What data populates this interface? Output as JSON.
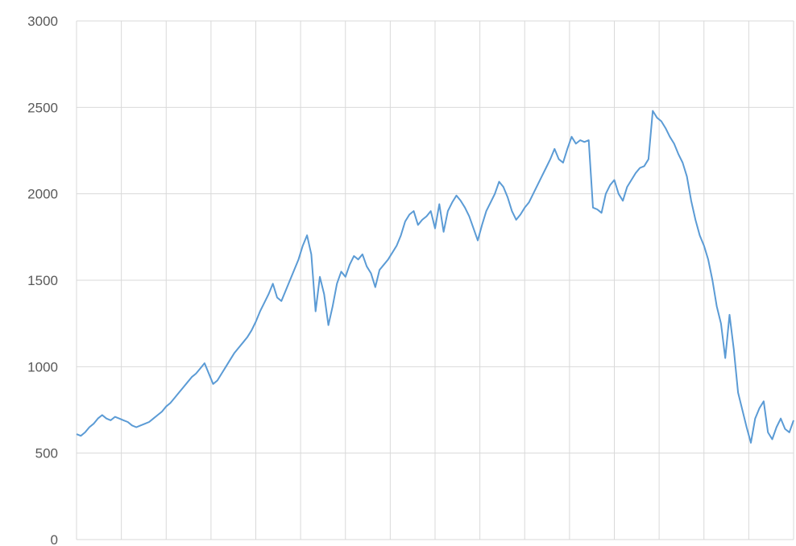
{
  "chart_data": {
    "type": "line",
    "title": "",
    "xlabel": "",
    "ylabel": "",
    "ylim": [
      0,
      3000
    ],
    "y_ticks": [
      0,
      500,
      1000,
      1500,
      2000,
      2500,
      3000
    ],
    "y_tick_labels": [
      "0",
      "500",
      "1000",
      "1500",
      "2000",
      "2500",
      "3000"
    ],
    "x_gridlines": true,
    "y_gridlines": true,
    "x_tick_labels_visible": false,
    "line_color": "#5b9bd5",
    "grid_color": "#d9d9d9",
    "series": [
      {
        "values": [
          610,
          600,
          620,
          650,
          670,
          700,
          720,
          700,
          690,
          710,
          700,
          690,
          680,
          660,
          650,
          660,
          670,
          680,
          700,
          720,
          740,
          770,
          790,
          820,
          850,
          880,
          910,
          940,
          960,
          990,
          1020,
          960,
          900,
          920,
          960,
          1000,
          1040,
          1080,
          1110,
          1140,
          1170,
          1210,
          1260,
          1320,
          1370,
          1420,
          1480,
          1400,
          1380,
          1440,
          1500,
          1560,
          1620,
          1700,
          1760,
          1650,
          1320,
          1520,
          1420,
          1240,
          1350,
          1480,
          1550,
          1520,
          1590,
          1640,
          1620,
          1650,
          1580,
          1540,
          1460,
          1560,
          1590,
          1620,
          1660,
          1700,
          1760,
          1840,
          1880,
          1900,
          1820,
          1850,
          1870,
          1900,
          1800,
          1940,
          1780,
          1900,
          1950,
          1990,
          1960,
          1920,
          1870,
          1800,
          1730,
          1820,
          1900,
          1950,
          2000,
          2070,
          2040,
          1980,
          1900,
          1850,
          1880,
          1920,
          1950,
          2000,
          2050,
          2100,
          2150,
          2200,
          2260,
          2200,
          2180,
          2260,
          2330,
          2290,
          2310,
          2300,
          2310,
          1920,
          1910,
          1890,
          2000,
          2050,
          2080,
          2000,
          1960,
          2040,
          2080,
          2120,
          2150,
          2160,
          2200,
          2480,
          2440,
          2420,
          2380,
          2330,
          2290,
          2230,
          2180,
          2100,
          1960,
          1850,
          1760,
          1700,
          1620,
          1500,
          1350,
          1250,
          1050,
          1300,
          1100,
          850,
          750,
          650,
          560,
          700,
          760,
          800,
          620,
          580,
          650,
          700,
          640,
          620,
          690
        ]
      }
    ]
  }
}
